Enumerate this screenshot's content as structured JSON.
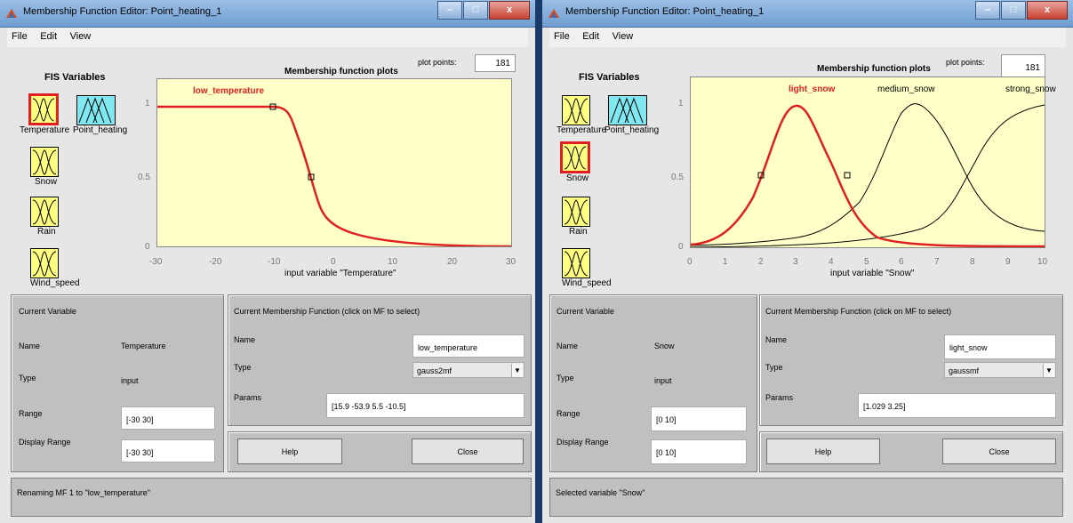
{
  "win1": {
    "title": "Membership Function Editor: Point_heating_1",
    "menu": [
      "File",
      "Edit",
      "View"
    ],
    "fis_title": "FIS Variables",
    "vars": [
      "Temperature",
      "Point_heating",
      "Snow",
      "Rain",
      "Wind_speed"
    ],
    "plot_points_label": "plot points:",
    "plot_points": "181",
    "plot_title": "Membership function plots",
    "xlabel": "input variable \"Temperature\"",
    "xticks": [
      "-30",
      "-20",
      "-10",
      "0",
      "10",
      "20",
      "30"
    ],
    "yticks": [
      "1",
      "0.5",
      "0"
    ],
    "mf_labels": [
      "low_temperature"
    ],
    "current_variable_title": "Current Variable",
    "name_label": "Name",
    "name_value": "Temperature",
    "type_label": "Type",
    "type_value": "input",
    "range_label": "Range",
    "range_value": "[-30 30]",
    "display_range_label": "Display Range",
    "display_range_value": "[-30 30]",
    "mf_title": "Current Membership Function (click on MF to select)",
    "mf_name_label": "Name",
    "mf_name": "low_temperature",
    "mf_type_label": "Type",
    "mf_type": "gauss2mf",
    "params_label": "Params",
    "params": "[15.9 -53.9 5.5 -10.5]",
    "help": "Help",
    "close": "Close",
    "status": "Renaming MF 1 to \"low_temperature\""
  },
  "win2": {
    "title": "Membership Function Editor: Point_heating_1",
    "menu": [
      "File",
      "Edit",
      "View"
    ],
    "fis_title": "FIS Variables",
    "vars": [
      "Temperature",
      "Point_heating",
      "Snow",
      "Rain",
      "Wind_speed"
    ],
    "plot_points_label": "plot points:",
    "plot_points": "181",
    "plot_title": "Membership function plots",
    "xlabel": "input variable \"Snow\"",
    "xticks": [
      "0",
      "1",
      "2",
      "3",
      "4",
      "5",
      "6",
      "7",
      "8",
      "9",
      "10"
    ],
    "yticks": [
      "1",
      "0.5",
      "0"
    ],
    "mf_labels": [
      "light_snow",
      "medium_snow",
      "strong_snow"
    ],
    "current_variable_title": "Current Variable",
    "name_label": "Name",
    "name_value": "Snow",
    "type_label": "Type",
    "type_value": "input",
    "range_label": "Range",
    "range_value": "[0 10]",
    "display_range_label": "Display Range",
    "display_range_value": "[0 10]",
    "mf_title": "Current Membership Function (click on MF to select)",
    "mf_name_label": "Name",
    "mf_name": "light_snow",
    "mf_type_label": "Type",
    "mf_type": "gaussmf",
    "params_label": "Params",
    "params": "[1.029 3.25]",
    "help": "Help",
    "close": "Close",
    "status": "Selected variable \"Snow\""
  },
  "colors": {
    "plot_bg": "#ffffc8",
    "selected_mf": "#e02020",
    "mf": "#000000",
    "var_input": "#ffff80",
    "var_output": "#80e8f0"
  }
}
